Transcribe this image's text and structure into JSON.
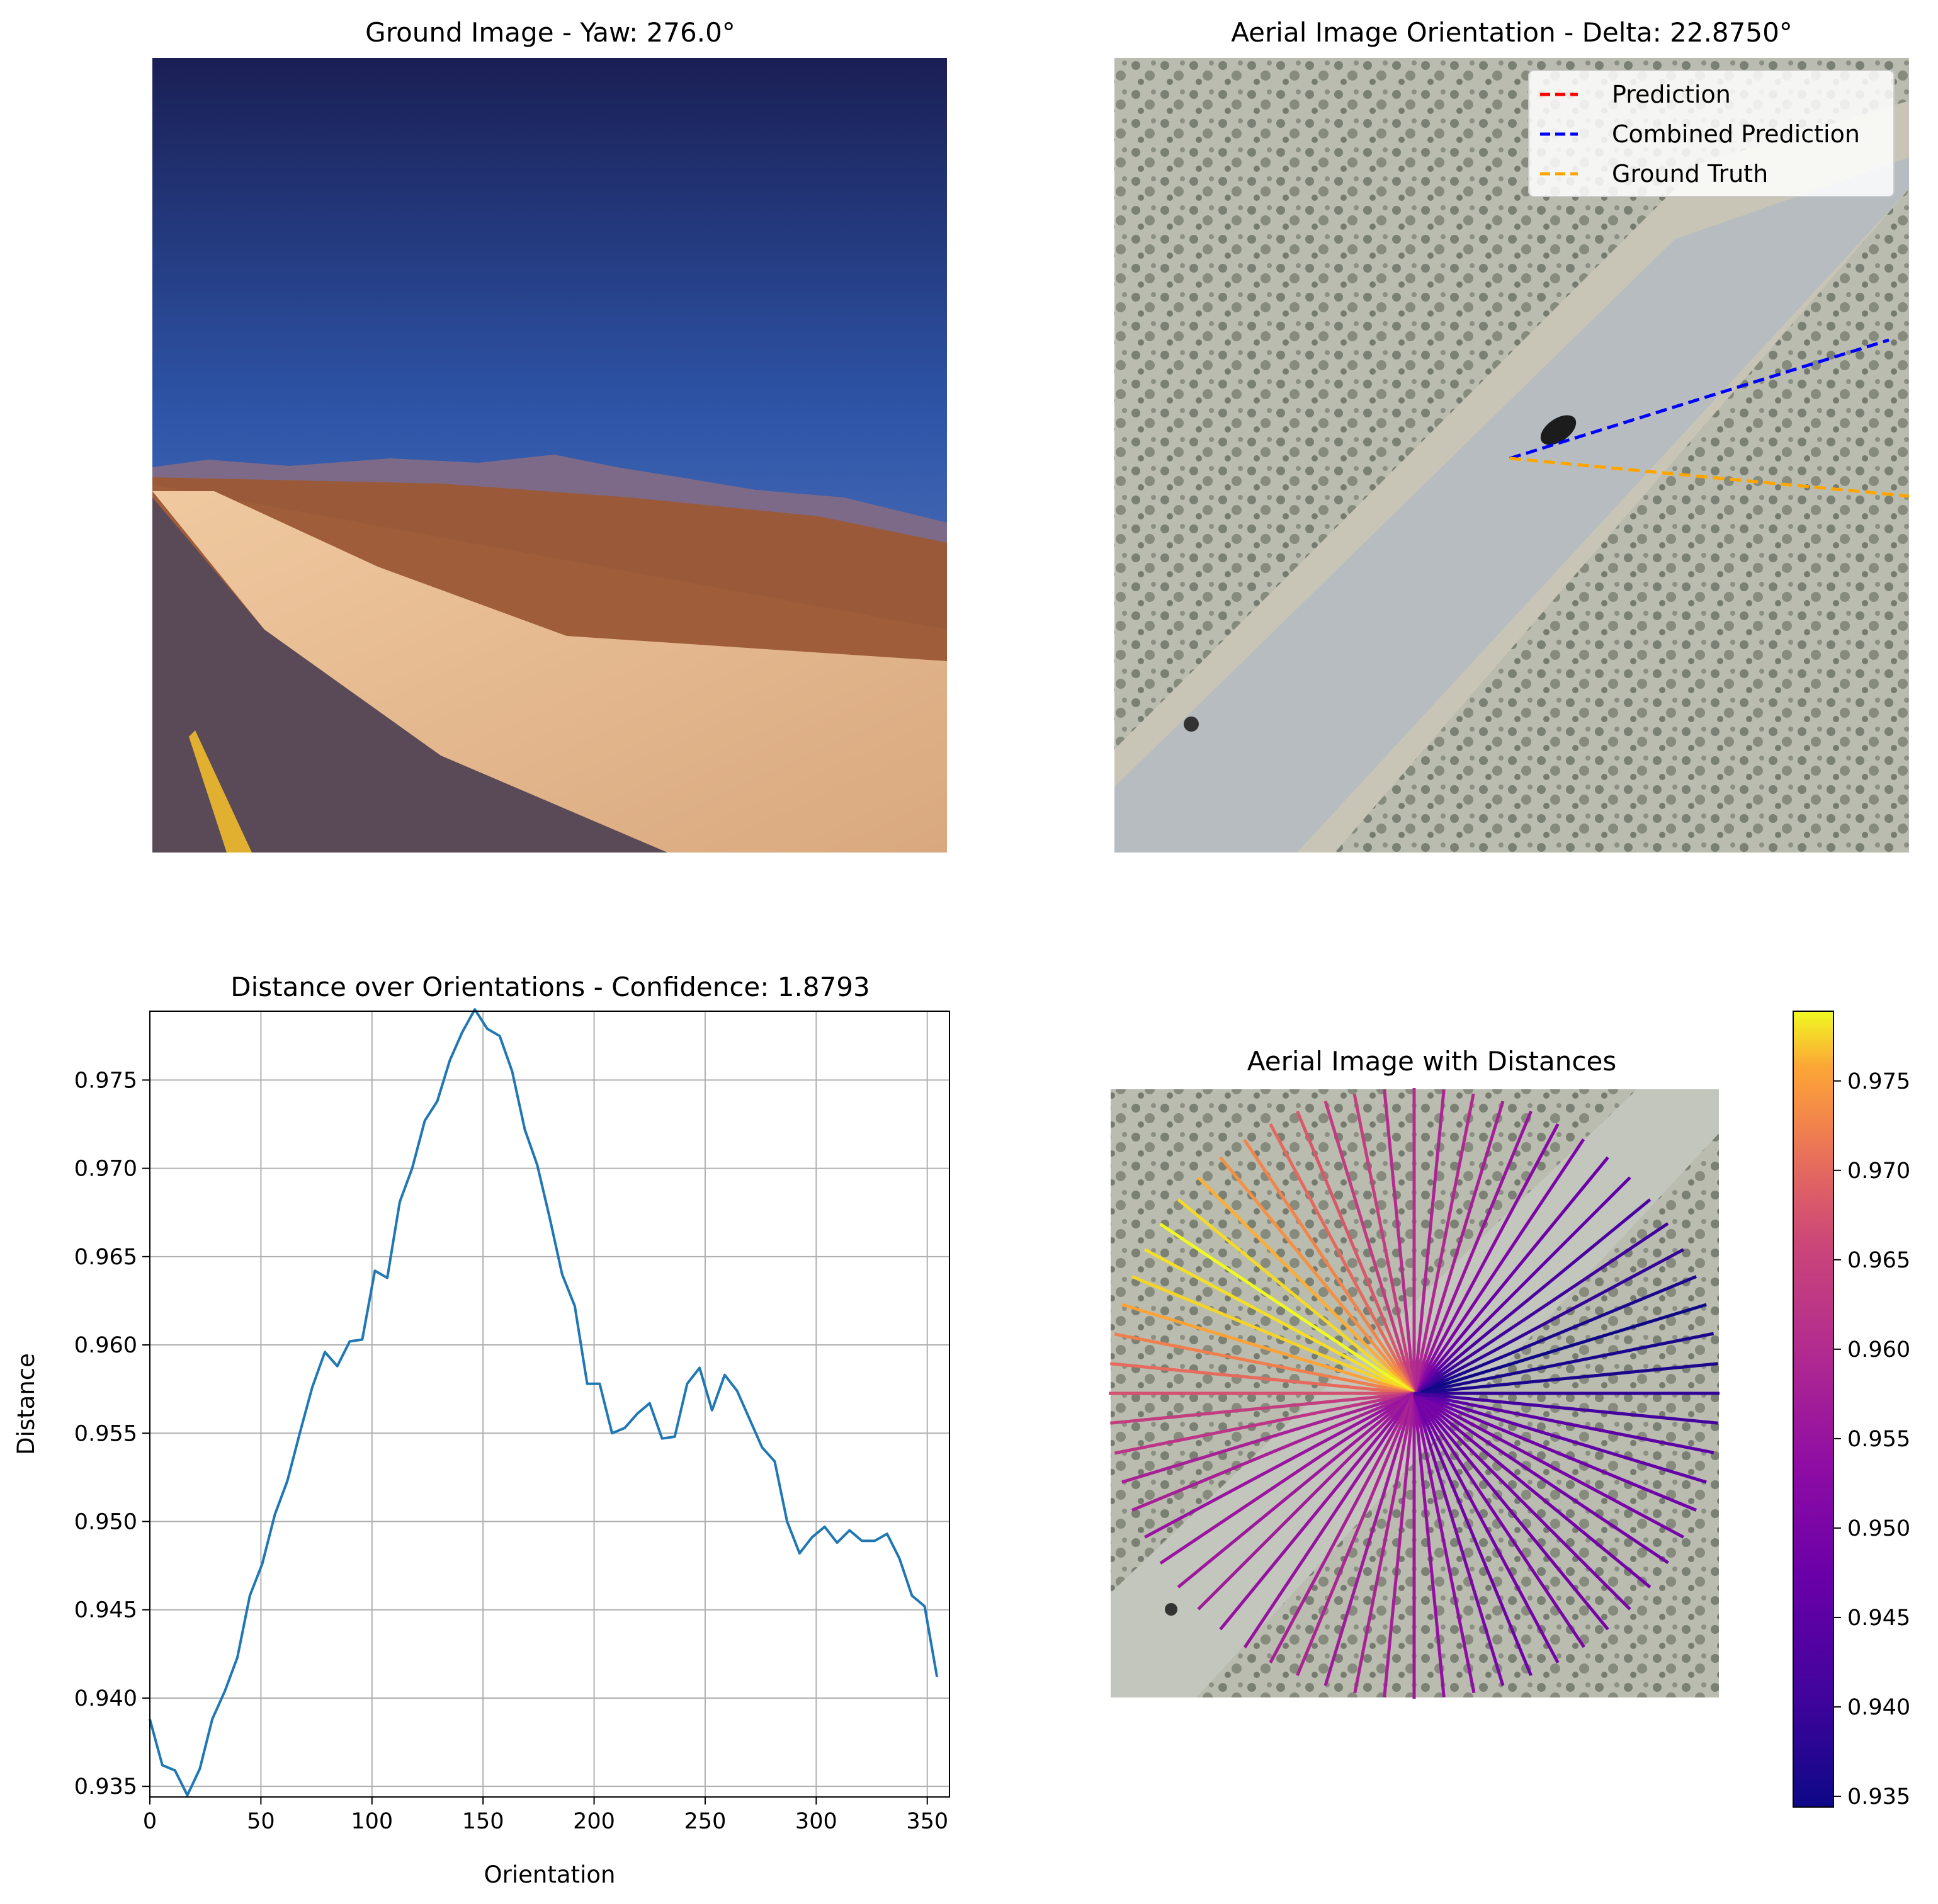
{
  "panels": {
    "ground": {
      "title": "Ground Image - Yaw: 276.0°"
    },
    "aerial": {
      "title": "Aerial Image Orientation - Delta: 22.8750°",
      "legend": [
        {
          "label": "Prediction",
          "color": "#ff0000"
        },
        {
          "label": "Combined Prediction",
          "color": "#0000ff"
        },
        {
          "label": "Ground Truth",
          "color": "#ffa500"
        }
      ]
    },
    "polar": {
      "title": "Aerial Image with Distances"
    },
    "colorbar": {
      "ticks": [
        "0.935",
        "0.940",
        "0.945",
        "0.950",
        "0.955",
        "0.960",
        "0.965",
        "0.970",
        "0.975"
      ]
    }
  },
  "chart_data": {
    "type": "line",
    "title": "Distance over Orientations - Confidence: 1.8793",
    "xlabel": "Orientation",
    "ylabel": "Distance",
    "xlim": [
      0,
      360
    ],
    "ylim": [
      0.9344,
      0.9789
    ],
    "grid": true,
    "xticks": [
      "0",
      "50",
      "100",
      "150",
      "200",
      "250",
      "300",
      "350"
    ],
    "yticks": [
      "0.935",
      "0.940",
      "0.945",
      "0.950",
      "0.955",
      "0.960",
      "0.965",
      "0.970",
      "0.975"
    ],
    "series": [
      {
        "color": "#1f77b4",
        "x": [
          0,
          5.6,
          11.3,
          16.9,
          22.5,
          28.1,
          33.8,
          39.4,
          45,
          50.6,
          56.3,
          61.9,
          67.5,
          73.1,
          78.8,
          84.4,
          90,
          95.6,
          101.3,
          106.9,
          112.5,
          118.1,
          123.8,
          129.4,
          135,
          140.6,
          146.3,
          151.9,
          157.5,
          163.1,
          168.8,
          174.4,
          180,
          185.6,
          191.3,
          196.9,
          202.5,
          208.1,
          213.8,
          219.4,
          225,
          230.6,
          236.3,
          241.9,
          247.5,
          253.1,
          258.8,
          264.4,
          270,
          275.6,
          281.3,
          286.9,
          292.5,
          298.1,
          303.8,
          309.4,
          315,
          320.6,
          326.3,
          331.9,
          337.5,
          343.1,
          348.8,
          354.4
        ],
        "y": [
          0.9388,
          0.9362,
          0.9359,
          0.9345,
          0.936,
          0.9388,
          0.9404,
          0.9423,
          0.9458,
          0.9476,
          0.9504,
          0.9523,
          0.955,
          0.9576,
          0.9596,
          0.9588,
          0.9602,
          0.9603,
          0.9642,
          0.9638,
          0.9681,
          0.97,
          0.9727,
          0.9738,
          0.9761,
          0.9777,
          0.979,
          0.9779,
          0.9775,
          0.9755,
          0.9722,
          0.9702,
          0.9672,
          0.964,
          0.9622,
          0.9578,
          0.9578,
          0.955,
          0.9553,
          0.9561,
          0.9567,
          0.9547,
          0.9548,
          0.9578,
          0.9587,
          0.9563,
          0.9583,
          0.9574,
          0.9558,
          0.9542,
          0.9534,
          0.95,
          0.9482,
          0.9491,
          0.9497,
          0.9488,
          0.9495,
          0.9489,
          0.9489,
          0.9493,
          0.9479,
          0.9458,
          0.9452,
          0.9412
        ]
      }
    ]
  }
}
